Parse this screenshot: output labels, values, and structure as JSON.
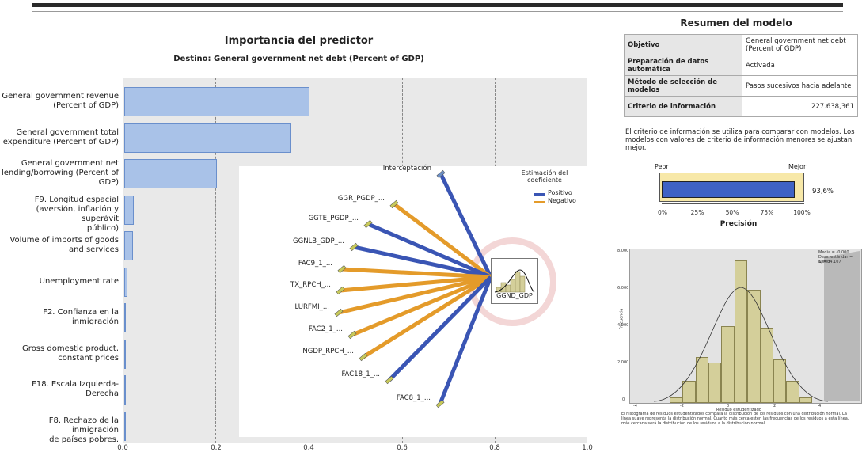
{
  "importance_chart": {
    "title": "Importancia del predictor",
    "subtitle": "Destino: General government net debt  (Percent of GDP)",
    "x_ticks": [
      "0,0",
      "0,2",
      "0,4",
      "0,6",
      "0,8",
      "1,0"
    ],
    "chart_data": {
      "type": "bar",
      "orientation": "horizontal",
      "categories": [
        "General government revenue (Percent of GDP)",
        "General government total expenditure  (Percent of GDP)",
        "General government net lending/borrowing  (Percent of GDP)",
        "F9. Longitud espacial (aversión, inflación y superávit público)",
        "Volume of imports of goods and services",
        "Unemployment rate",
        "F2. Confianza en la inmigración",
        "Gross domestic product, constant prices",
        "F18. Escala Izquierda-Derecha",
        "F8. Rechazo de la inmigración de países pobres."
      ],
      "values": [
        0.4,
        0.36,
        0.2,
        0.02,
        0.018,
        0.006,
        0.004,
        0.003,
        0.002,
        0.001
      ],
      "xlim": [
        0.0,
        1.0
      ],
      "grid": "vertical dashed"
    },
    "labels": [
      {
        "l1": "General government revenue",
        "l2": "(Percent of GDP)",
        "l3": ""
      },
      {
        "l1": "General government total",
        "l2": "expenditure  (Percent of GDP)",
        "l3": ""
      },
      {
        "l1": "General government net",
        "l2": "lending/borrowing  (Percent of",
        "l3": "GDP)"
      },
      {
        "l1": "F9. Longitud espacial",
        "l2": "(aversión, inflación y superávit",
        "l3": "público)"
      },
      {
        "l1": "Volume of imports of goods",
        "l2": "and services",
        "l3": ""
      },
      {
        "l1": "Unemployment rate",
        "l2": "",
        "l3": ""
      },
      {
        "l1": "F2. Confianza en la",
        "l2": "inmigración",
        "l3": ""
      },
      {
        "l1": "Gross domestic product,",
        "l2": "constant prices",
        "l3": ""
      },
      {
        "l1": "F18. Escala Izquierda-",
        "l2": "Derecha",
        "l3": ""
      },
      {
        "l1": "F8. Rechazo de la inmigración",
        "l2": "de países pobres.",
        "l3": ""
      }
    ]
  },
  "network": {
    "target": "GGND_GDP",
    "legend_title": "Estimación del coeficiente",
    "legend_positive": "Positivo",
    "legend_negative": "Negativo",
    "positive_color": "#3a55b4",
    "negative_color": "#e49b2a",
    "nodes": [
      {
        "label": "Interceptación",
        "sign": "positive"
      },
      {
        "label": "GGR_PGDP_...",
        "sign": "negative"
      },
      {
        "label": "GGTE_PGDP_...",
        "sign": "positive"
      },
      {
        "label": "GGNLB_GDP_...",
        "sign": "positive"
      },
      {
        "label": "FAC9_1_...",
        "sign": "negative"
      },
      {
        "label": "TX_RPCH_...",
        "sign": "negative"
      },
      {
        "label": "LURFMI_...",
        "sign": "negative"
      },
      {
        "label": "FAC2_1_...",
        "sign": "negative"
      },
      {
        "label": "NGDP_RPCH_...",
        "sign": "negative"
      },
      {
        "label": "FAC18_1_...",
        "sign": "positive"
      },
      {
        "label": "FAC8_1_...",
        "sign": "positive"
      }
    ]
  },
  "summary": {
    "title": "Resumen del modelo",
    "rows": [
      {
        "key": "Objetivo",
        "value": "General government net debt (Percent of GDP)"
      },
      {
        "key": "Preparación de datos automática",
        "value": "Activada"
      },
      {
        "key": "Método de selección de modelos",
        "value": "Pasos sucesivos hacia adelante"
      },
      {
        "key": "Criterio de información",
        "value": "227.638,361"
      }
    ],
    "note": "El criterio de información se utiliza para comparar con modelos. Los modelos con valores de criterio de información menores se ajustan mejor."
  },
  "accuracy": {
    "worse_label": "Peor",
    "better_label": "Mejor",
    "value_label": "93,6%",
    "value": 0.936,
    "axis_label": "Precisión",
    "ticks": [
      "0%",
      "25%",
      "50%",
      "75%",
      "100%"
    ]
  },
  "histogram": {
    "y_ticks": [
      "8.000",
      "6.000",
      "4.000",
      "2.000",
      "0"
    ],
    "x_ticks": [
      "-4",
      "-2",
      "0",
      "2",
      "4"
    ],
    "ylabel": "Frecuencia",
    "xlabel": "Residuo estudentizado",
    "stats": [
      "Media = -0,000",
      "Desv. estándar = 1,000",
      "N = 34.107"
    ],
    "caption": "El histograma de residuos estudentizados compara la distribución de los residuos con una distribución normal. La línea suave representa la distribución normal. Cuanto más cerca estén las frecuencias de los residuos a esta línea, más cercana será la distribución de los residuos a la distribución normal.",
    "chart_data": {
      "type": "bar",
      "categories": [
        "-2.5",
        "-2.0",
        "-1.5",
        "-1.0",
        "-0.5",
        "0.0",
        "0.5",
        "1.0",
        "1.5",
        "2.0",
        "2.5"
      ],
      "values": [
        300,
        1200,
        2500,
        2200,
        4200,
        7800,
        6200,
        4100,
        2400,
        1200,
        300
      ],
      "ylim": [
        0,
        8000
      ]
    }
  }
}
